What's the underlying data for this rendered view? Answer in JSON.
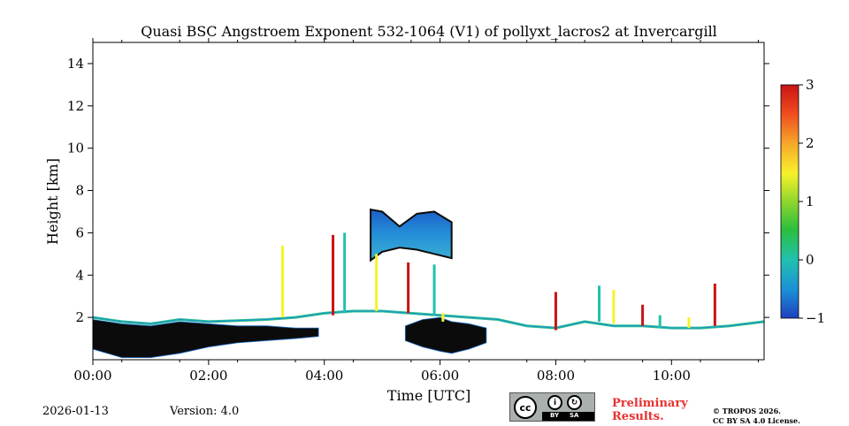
{
  "chart_data": {
    "type": "heatmap",
    "title": "Quasi BSC Angstroem Exponent 532-1064 (V1) of pollyxt_lacros2 at Invercargill",
    "xlabel": "Time [UTC]",
    "ylabel": "Height [km]",
    "xlim": [
      0,
      11.6
    ],
    "ylim": [
      0,
      15
    ],
    "x_ticks": [
      {
        "value": 0,
        "label": "00:00"
      },
      {
        "value": 2,
        "label": "02:00"
      },
      {
        "value": 4,
        "label": "04:00"
      },
      {
        "value": 6,
        "label": "06:00"
      },
      {
        "value": 8,
        "label": "08:00"
      },
      {
        "value": 10,
        "label": "10:00"
      }
    ],
    "y_ticks": [
      {
        "value": 2,
        "label": "2"
      },
      {
        "value": 4,
        "label": "4"
      },
      {
        "value": 6,
        "label": "6"
      },
      {
        "value": 8,
        "label": "8"
      },
      {
        "value": 10,
        "label": "10"
      },
      {
        "value": 12,
        "label": "12"
      },
      {
        "value": 14,
        "label": "14"
      }
    ],
    "colorbar": {
      "range": [
        -1,
        3
      ],
      "ticks": [
        {
          "value": 3,
          "label": "3"
        },
        {
          "value": 2,
          "label": "2"
        },
        {
          "value": 1,
          "label": "1"
        },
        {
          "value": 0,
          "label": "0"
        },
        {
          "value": -1,
          "label": "−1"
        }
      ],
      "colors": [
        "#1f3fbf",
        "#1a8fd6",
        "#22c0b0",
        "#2bbf3c",
        "#b8e62e",
        "#f7f22a",
        "#f7a62a",
        "#f04a1e",
        "#c81414"
      ]
    },
    "features": [
      {
        "name": "boundary-layer-top",
        "kind": "line",
        "x": [
          0,
          0.5,
          1,
          1.5,
          2,
          2.5,
          3,
          3.5,
          4,
          4.5,
          5,
          5.5,
          6,
          6.5,
          7,
          7.5,
          8,
          8.5,
          9,
          9.5,
          10,
          10.5,
          11,
          11.6
        ],
        "y": [
          2.0,
          1.8,
          1.7,
          1.9,
          1.8,
          1.85,
          1.9,
          2.0,
          2.2,
          2.3,
          2.3,
          2.2,
          2.1,
          2.0,
          1.9,
          1.6,
          1.5,
          1.8,
          1.6,
          1.6,
          1.5,
          1.5,
          1.6,
          1.8
        ]
      },
      {
        "name": "boundary-layer-aerosol",
        "kind": "band",
        "x": [
          0,
          0.5,
          1,
          1.5,
          2,
          2.5,
          3,
          3.5,
          3.9
        ],
        "top": [
          1.9,
          1.7,
          1.6,
          1.8,
          1.7,
          1.6,
          1.6,
          1.5,
          1.5
        ],
        "bottom": [
          0.5,
          0.1,
          0.1,
          0.3,
          0.6,
          0.8,
          0.9,
          1.0,
          1.1
        ]
      },
      {
        "name": "cloud-layer",
        "kind": "band",
        "x": [
          4.8,
          5.0,
          5.3,
          5.6,
          5.9,
          6.2
        ],
        "top": [
          7.1,
          7.0,
          6.3,
          6.9,
          7.0,
          6.5
        ],
        "bottom": [
          4.7,
          5.1,
          5.3,
          5.2,
          5.0,
          4.8
        ]
      },
      {
        "name": "lower-cloud-layer",
        "kind": "band",
        "x": [
          5.4,
          5.7,
          6.0,
          6.2,
          6.5,
          6.8
        ],
        "top": [
          1.6,
          1.9,
          2.0,
          1.8,
          1.7,
          1.5
        ],
        "bottom": [
          0.9,
          0.6,
          0.4,
          0.3,
          0.5,
          0.8
        ]
      },
      {
        "name": "aerosol-plumes",
        "kind": "columns",
        "x": [
          3.28,
          4.15,
          4.35,
          4.9,
          5.45,
          5.9,
          6.05,
          8.0,
          8.75,
          9.0,
          9.5,
          9.8,
          10.3,
          10.75
        ],
        "top": [
          5.4,
          5.9,
          6.0,
          5.0,
          4.6,
          4.5,
          2.2,
          3.2,
          3.5,
          3.3,
          2.6,
          2.1,
          2.0,
          3.6
        ],
        "bottom": [
          2.0,
          2.1,
          2.2,
          2.3,
          2.2,
          2.1,
          1.8,
          1.4,
          1.8,
          1.7,
          1.6,
          1.5,
          1.5,
          1.6
        ]
      }
    ]
  },
  "footer": {
    "date": "2026-01-13",
    "version": "Version: 4.0",
    "preliminary_line1": "Preliminary",
    "preliminary_line2": "Results.",
    "copyright_line1": "© TROPOS 2026.",
    "copyright_line2": "CC BY SA 4.0 License.",
    "license_badge": "cc",
    "license_by": "BY",
    "license_sa": "SA"
  }
}
